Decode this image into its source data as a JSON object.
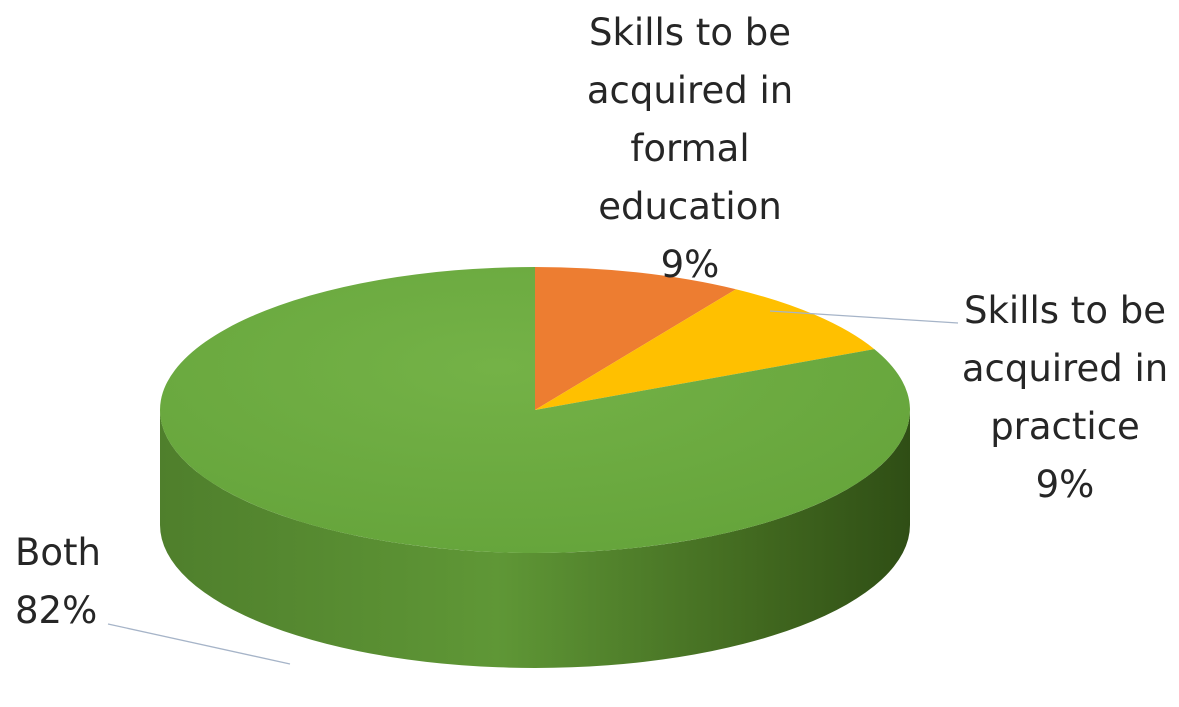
{
  "chart_data": {
    "type": "pie",
    "style": "3d",
    "title": "",
    "slices": [
      {
        "label": "Skills to be acquired in formal education",
        "value": 9,
        "percent_label": "9%",
        "color": "#ed7d31"
      },
      {
        "label": "Skills to be acquired in practice",
        "value": 9,
        "percent_label": "9%",
        "color": "#ffc000"
      },
      {
        "label": "Both",
        "value": 82,
        "percent_label": "82%",
        "color": "#70ad47"
      }
    ],
    "labels": [
      {
        "lines": [
          "Skills to be",
          "acquired in",
          "formal",
          "education",
          "9%"
        ]
      },
      {
        "lines": [
          "Skills to be",
          "acquired in",
          "practice",
          "9%"
        ]
      },
      {
        "lines": [
          "Both",
          "82%"
        ]
      }
    ],
    "legend": "none",
    "data_labels": "outside-with-leader-lines"
  }
}
